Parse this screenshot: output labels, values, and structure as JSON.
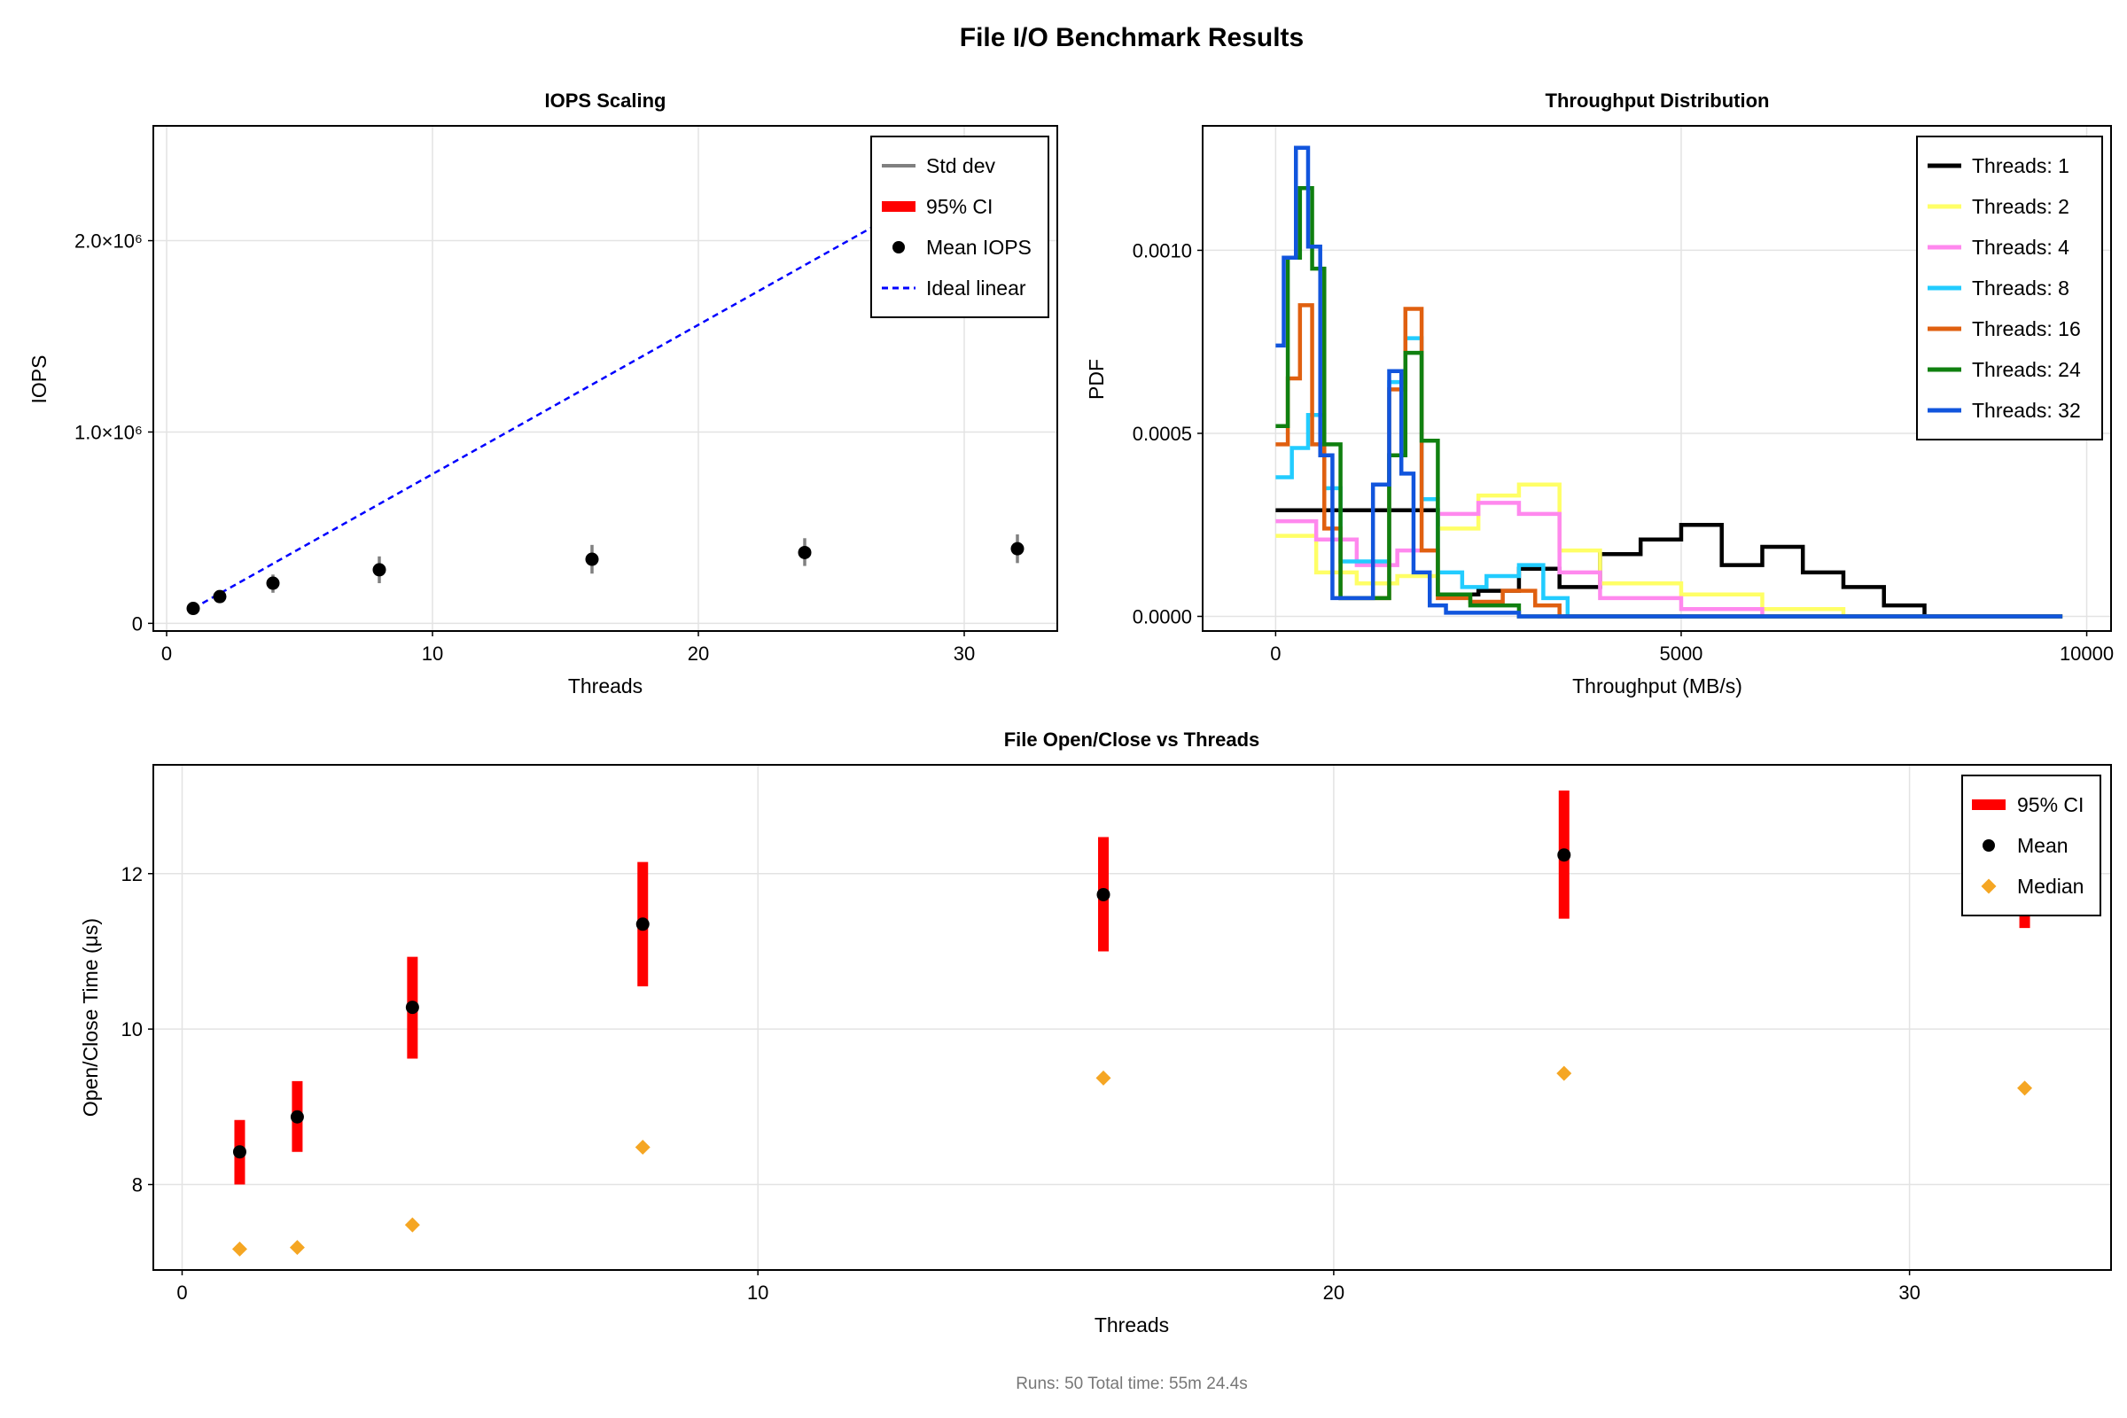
{
  "figure": {
    "title": "File I/O Benchmark Results",
    "footer": "Runs: 50  Total time: 55m 24.4s"
  },
  "colors": {
    "std_dev": "#808080",
    "ci": "#ff0000",
    "mean": "#000000",
    "median": "#f5a623",
    "ideal": "#0000ff",
    "grid": "#e3e3e3",
    "series": [
      "#000000",
      "#ffff66",
      "#ff88ee",
      "#22ccff",
      "#e06010",
      "#108010",
      "#1155dd"
    ]
  },
  "chart_data": [
    {
      "id": "iops",
      "type": "scatter",
      "title": "IOPS Scaling",
      "xlabel": "Threads",
      "ylabel": "IOPS",
      "xlim": [
        -0.5,
        33.5
      ],
      "ylim": [
        -40000,
        2600000
      ],
      "xticks": [
        0,
        10,
        20,
        30
      ],
      "xtick_labels": [
        "0",
        "10",
        "20",
        "30"
      ],
      "yticks": [
        0,
        1000000,
        2000000
      ],
      "ytick_labels": [
        "0",
        "1.0×10⁶",
        "2.0×10⁶"
      ],
      "grid": true,
      "legend_position": "top-right",
      "legend": [
        "Std dev",
        "95% CI",
        "Mean IOPS",
        "Ideal linear"
      ],
      "x": [
        1,
        2,
        4,
        8,
        16,
        24,
        32
      ],
      "mean": [
        78000,
        140000,
        210000,
        280000,
        335000,
        370000,
        390000
      ],
      "std_low": [
        70000,
        120000,
        160000,
        210000,
        260000,
        300000,
        315000
      ],
      "std_high": [
        88000,
        158000,
        255000,
        350000,
        410000,
        445000,
        465000
      ],
      "ci_low": [
        75000,
        135000,
        205000,
        270000,
        328000,
        363000,
        383000
      ],
      "ci_high": [
        81000,
        145000,
        215000,
        290000,
        342000,
        377000,
        397000
      ],
      "ideal_linear": {
        "x": [
          1,
          32
        ],
        "y": [
          78000,
          2496000
        ]
      }
    },
    {
      "id": "throughput",
      "type": "line",
      "title": "Throughput Distribution",
      "xlabel": "Throughput (MB/s)",
      "ylabel": "PDF",
      "xlim": [
        -900,
        10300
      ],
      "ylim": [
        -4e-05,
        0.00134
      ],
      "xticks": [
        0,
        5000,
        10000
      ],
      "xtick_labels": [
        "0",
        "5000",
        "10000"
      ],
      "yticks": [
        0,
        0.0005,
        0.001
      ],
      "ytick_labels": [
        "0.0000",
        "0.0005",
        "0.0010"
      ],
      "grid": true,
      "legend_position": "top-right",
      "series": [
        {
          "name": "Threads: 1",
          "bins": [
            0,
            2000,
            2500,
            3000,
            3500,
            4000,
            4500,
            5000,
            5500,
            6000,
            6500,
            7000,
            7500,
            8000,
            9700
          ],
          "pdf": [
            0.00029,
            6e-05,
            7e-05,
            0.00013,
            8e-05,
            0.00017,
            0.00021,
            0.00025,
            0.00014,
            0.00019,
            0.00012,
            8e-05,
            3e-05,
            0.0
          ]
        },
        {
          "name": "Threads: 2",
          "bins": [
            0,
            500,
            1000,
            1500,
            2000,
            2500,
            3000,
            3500,
            4000,
            5000,
            6000,
            7000,
            9700
          ],
          "pdf": [
            0.00022,
            0.00012,
            9e-05,
            0.00011,
            0.00024,
            0.00033,
            0.00036,
            0.00018,
            9e-05,
            6e-05,
            2e-05,
            0.0
          ]
        },
        {
          "name": "Threads: 4",
          "bins": [
            0,
            500,
            1000,
            1500,
            2000,
            2500,
            3000,
            3500,
            4000,
            5000,
            6000,
            9700
          ],
          "pdf": [
            0.00026,
            0.00021,
            0.00014,
            0.00018,
            0.00028,
            0.00031,
            0.00028,
            0.00012,
            5e-05,
            2e-05,
            0.0
          ]
        },
        {
          "name": "Threads: 8",
          "bins": [
            0,
            200,
            400,
            600,
            800,
            1400,
            1600,
            1800,
            2000,
            2300,
            2600,
            3000,
            3300,
            3600,
            9700
          ],
          "pdf": [
            0.00038,
            0.00046,
            0.00055,
            0.00035,
            0.00015,
            0.00064,
            0.00076,
            0.00032,
            0.00012,
            8e-05,
            0.00011,
            0.00014,
            5e-05,
            0.0
          ]
        },
        {
          "name": "Threads: 16",
          "bins": [
            0,
            150,
            300,
            450,
            600,
            800,
            1400,
            1600,
            1800,
            2000,
            2400,
            2800,
            3200,
            3500,
            9700
          ],
          "pdf": [
            0.00047,
            0.00065,
            0.00085,
            0.00047,
            0.00024,
            5e-05,
            0.00062,
            0.00084,
            0.00018,
            5e-05,
            4e-05,
            7e-05,
            3e-05,
            0.0
          ]
        },
        {
          "name": "Threads: 24",
          "bins": [
            0,
            150,
            300,
            450,
            600,
            800,
            1400,
            1600,
            1800,
            2000,
            2400,
            3000,
            9700
          ],
          "pdf": [
            0.00052,
            0.00098,
            0.00117,
            0.00095,
            0.00047,
            5e-05,
            0.00044,
            0.00072,
            0.00048,
            6e-05,
            3e-05,
            0.0
          ]
        },
        {
          "name": "Threads: 32",
          "bins": [
            0,
            100,
            250,
            400,
            550,
            700,
            1200,
            1400,
            1550,
            1700,
            1900,
            2100,
            3000,
            9700
          ],
          "pdf": [
            0.00074,
            0.00098,
            0.00128,
            0.00101,
            0.00044,
            5e-05,
            0.00036,
            0.00067,
            0.00039,
            0.00012,
            3e-05,
            1e-05,
            0.0
          ]
        }
      ]
    },
    {
      "id": "openclose",
      "type": "scatter",
      "title": "File Open/Close vs Threads",
      "xlabel": "Threads",
      "ylabel": "Open/Close Time (μs)",
      "xlim": [
        -0.5,
        33.5
      ],
      "ylim": [
        6.9,
        13.4
      ],
      "xticks": [
        0,
        10,
        20,
        30
      ],
      "xtick_labels": [
        "0",
        "10",
        "20",
        "30"
      ],
      "yticks": [
        8,
        10,
        12
      ],
      "ytick_labels": [
        "8",
        "10",
        "12"
      ],
      "grid": true,
      "legend_position": "top-right",
      "legend": [
        "95% CI",
        "Mean",
        "Median"
      ],
      "x": [
        1,
        2,
        4,
        8,
        16,
        24,
        32
      ],
      "mean": [
        8.42,
        8.87,
        10.28,
        11.35,
        11.73,
        12.24,
        11.8
      ],
      "ci_low": [
        8.0,
        8.42,
        9.62,
        10.55,
        11.0,
        11.42,
        11.3
      ],
      "ci_high": [
        8.83,
        9.33,
        10.93,
        12.15,
        12.47,
        13.07,
        12.3
      ],
      "median": [
        7.17,
        7.19,
        7.48,
        8.48,
        9.37,
        9.43,
        9.24
      ]
    }
  ]
}
